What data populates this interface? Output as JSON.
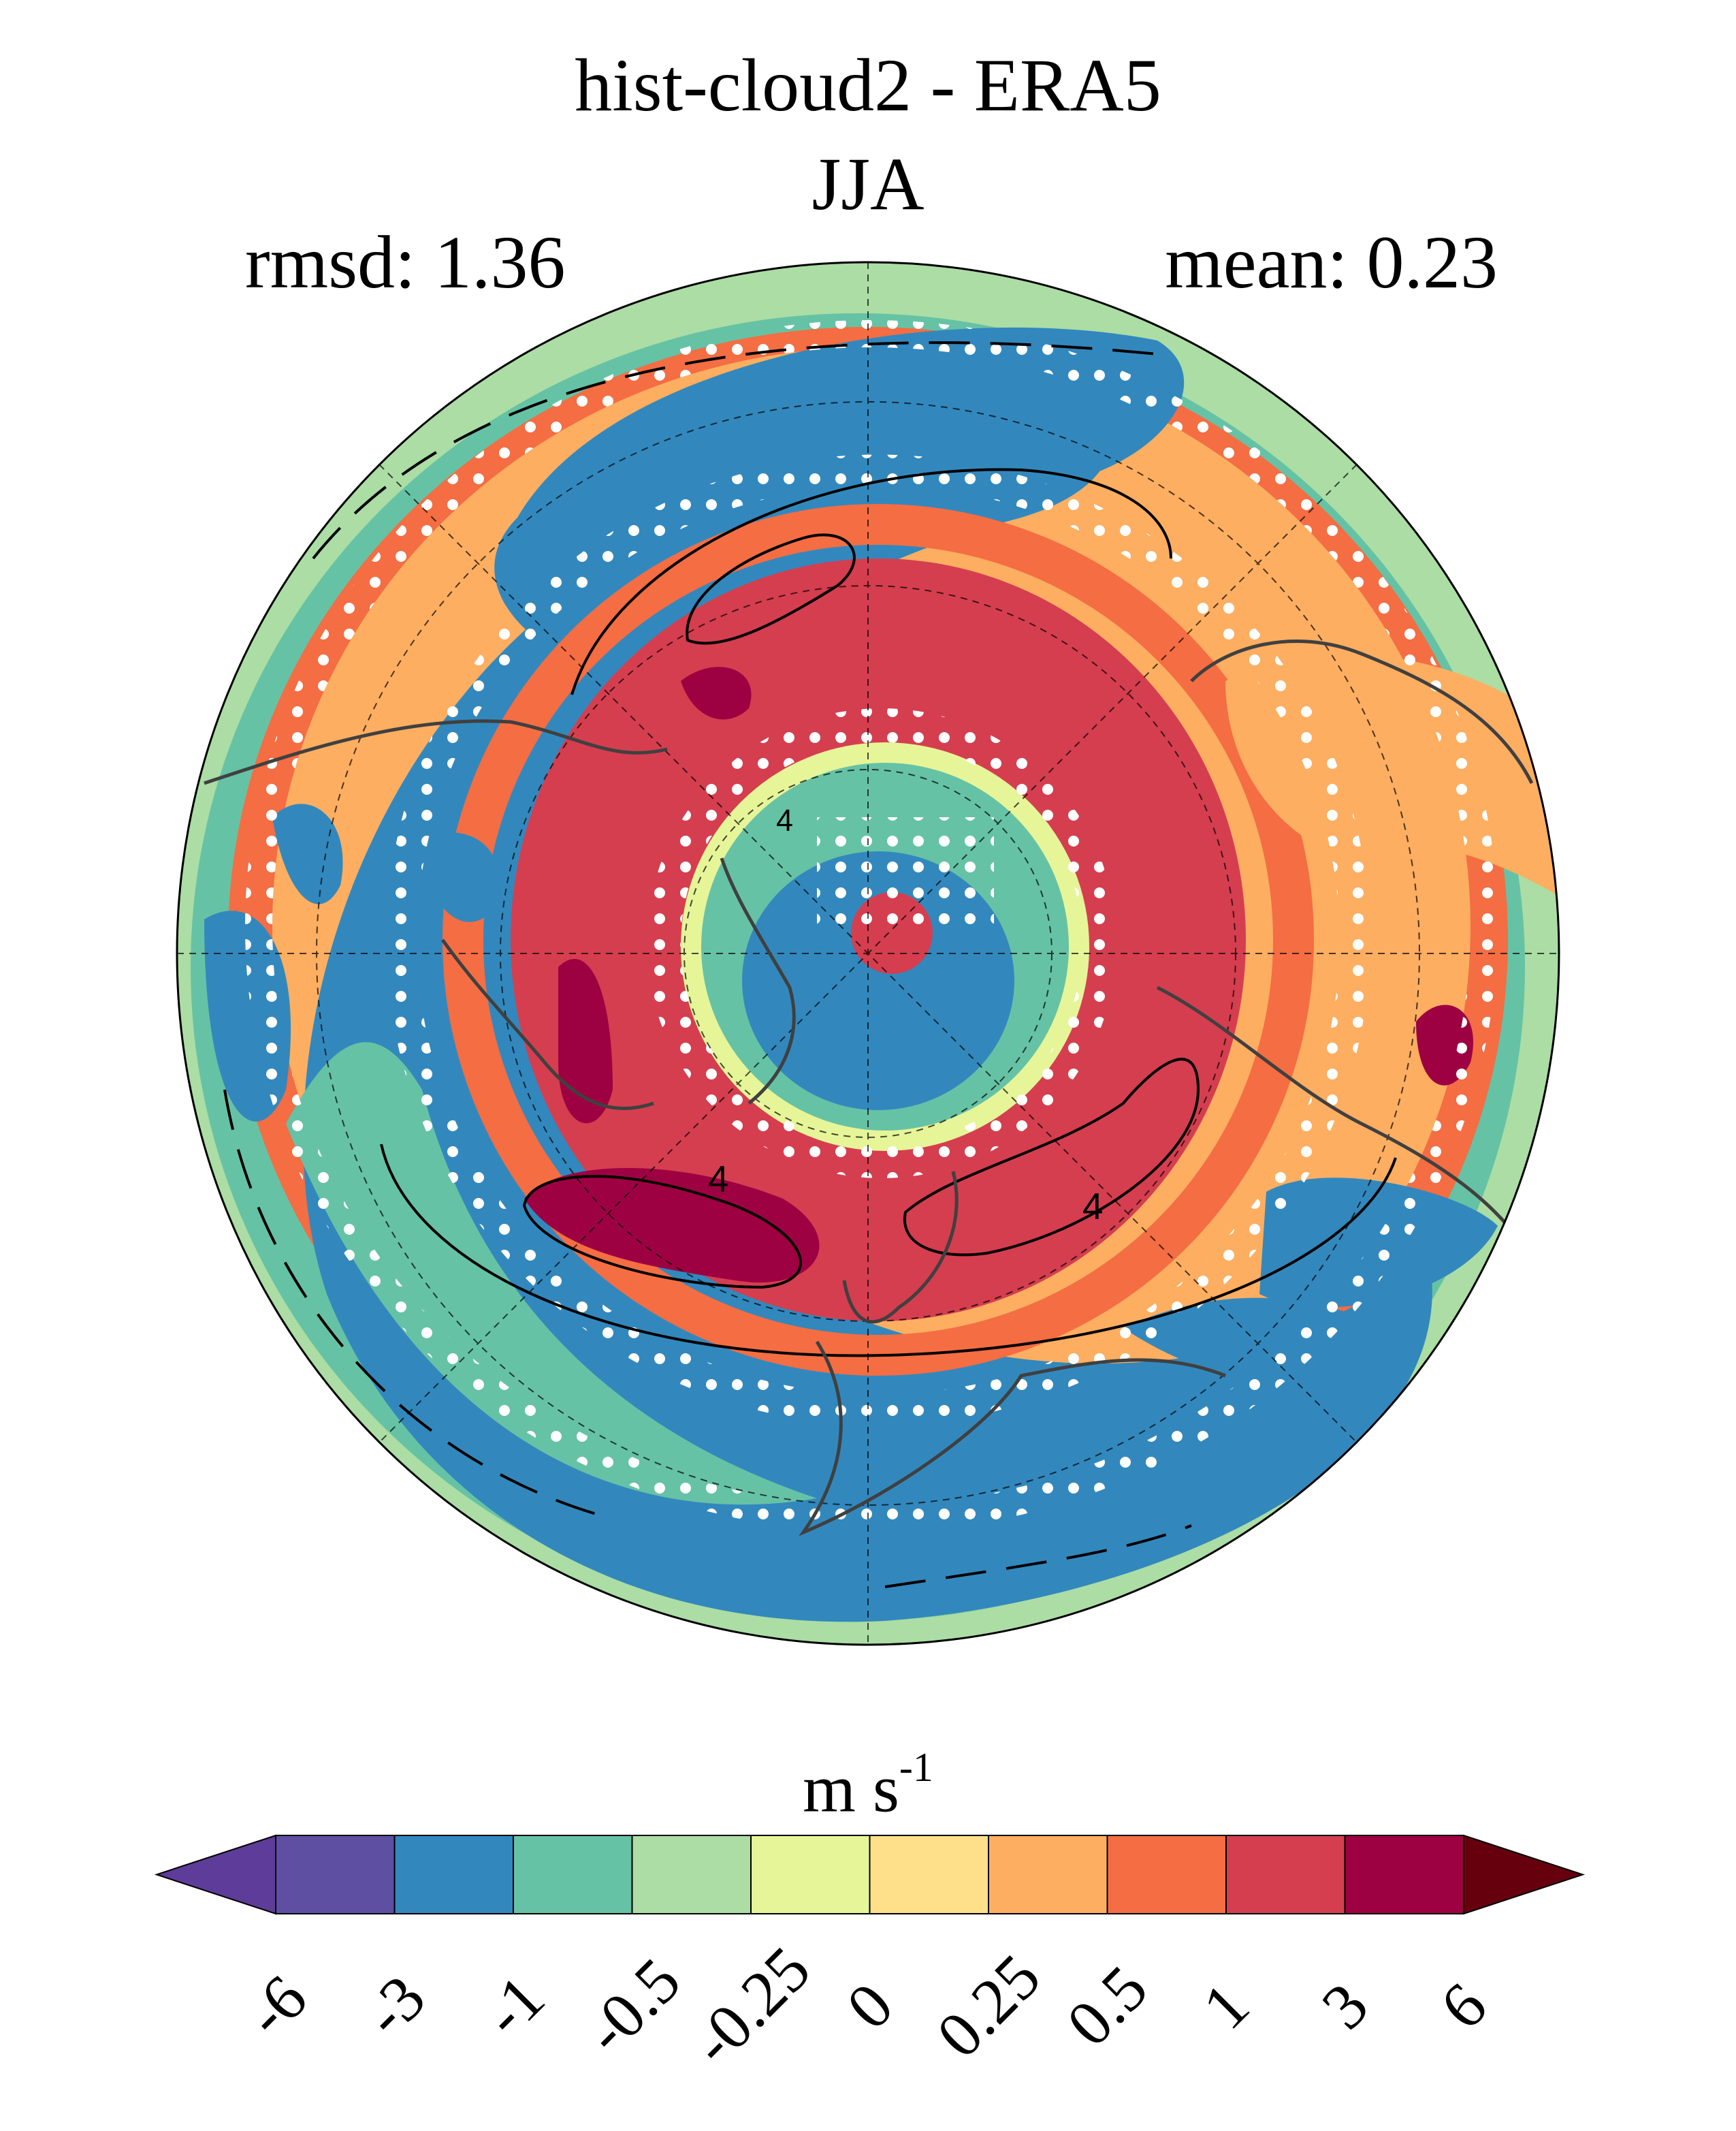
{
  "title": "hist-cloud2 - ERA5",
  "season": "JJA",
  "stats": {
    "rmsd": "rmsd: 1.36",
    "mean": "mean: 0.23"
  },
  "colorbar": {
    "unit_base": "m s",
    "unit_exp": "-1",
    "ticks": [
      "-6",
      "-3",
      "-1",
      "-0.5",
      "-0.25",
      "0",
      "0.25",
      "0.5",
      "1",
      "3",
      "6"
    ],
    "colors": [
      "#5e3c99",
      "#5e4fa2",
      "#3288bd",
      "#66c2a5",
      "#abdda4",
      "#e6f598",
      "#fee08b",
      "#fdae61",
      "#f46d43",
      "#d53e4f",
      "#9e0142",
      "#67000d"
    ]
  },
  "map": {
    "projection": "north-polar-stereographic",
    "palette": {
      "deep_red": "#9e0142",
      "red": "#d53e4f",
      "orange": "#f46d43",
      "light_orange": "#fdae61",
      "yellow": "#fee08b",
      "pale_yellow": "#e6f598",
      "light_green": "#abdda4",
      "teal": "#66c2a5",
      "blue": "#3288bd",
      "purple": "#5e4fa2"
    },
    "contour_labels": [
      "4",
      "4",
      "4"
    ]
  }
}
